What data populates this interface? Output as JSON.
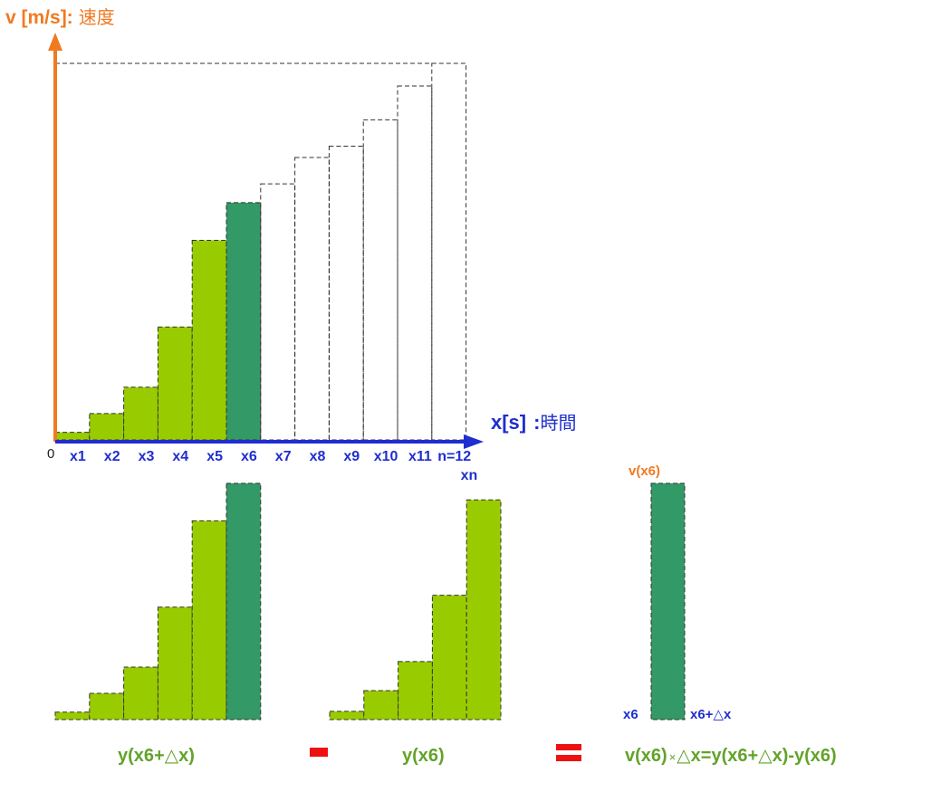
{
  "colors": {
    "axis_y": "#f07a22",
    "axis_x": "#1f2ecf",
    "bar_fill": "#99cc00",
    "highlight_fill": "#339966",
    "operator": "#ee1111",
    "formula_text": "#62a32a"
  },
  "axes": {
    "y_label_main": "v [m/s]:",
    "y_label_sub": "速度",
    "x_label_main": "x[s]",
    "x_label_sep": ":",
    "x_label_sub": "時間",
    "origin": "0"
  },
  "chart_data": {
    "type": "bar",
    "categories": [
      "x1",
      "x2",
      "x3",
      "x4",
      "x5",
      "x6",
      "x7",
      "x8",
      "x9",
      "x10",
      "x11",
      "n=12"
    ],
    "values": [
      0.02,
      0.07,
      0.14,
      0.3,
      0.53,
      0.63,
      0.68,
      0.75,
      0.78,
      0.85,
      0.94,
      1.0
    ],
    "filled_count": 6,
    "highlight_index": 5,
    "extra_tick_label": "xn"
  },
  "bottom": {
    "left_formula": "y(x6+△x)",
    "middle_formula": "y(x6)",
    "result_top_label": "v(x6)",
    "result_left_label": "x6",
    "result_right_label": "x6+△x",
    "result_formula_left": "v(x6)",
    "result_formula_times": "×",
    "result_formula_right": "△x=y(x6+△x)-y(x6)"
  }
}
